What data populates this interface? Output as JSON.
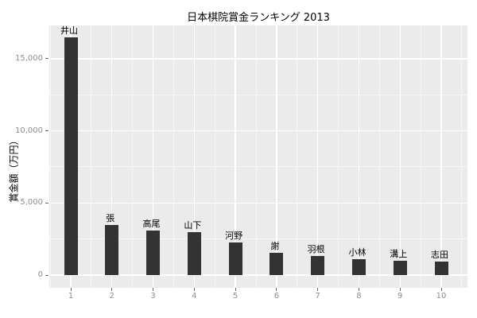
{
  "chart_data": {
    "type": "bar",
    "title": "日本棋院賞金ランキング 2013",
    "xlabel": "",
    "ylabel": "賞金額（万円）",
    "categories": [
      "1",
      "2",
      "3",
      "4",
      "5",
      "6",
      "7",
      "8",
      "9",
      "10"
    ],
    "bar_labels": [
      "井山",
      "張",
      "高尾",
      "山下",
      "河野",
      "謝",
      "羽根",
      "小林",
      "溝上",
      "志田"
    ],
    "values": [
      16461,
      3500,
      3100,
      3000,
      2250,
      1550,
      1300,
      1100,
      1000,
      950
    ],
    "yticks": [
      {
        "value": 0,
        "label": "0"
      },
      {
        "value": 5000,
        "label": "5,000"
      },
      {
        "value": 10000,
        "label": "10,000"
      },
      {
        "value": 15000,
        "label": "15,000"
      }
    ],
    "minor_yticks": [
      2500,
      7500,
      12500
    ],
    "ylim": [
      0,
      16461
    ],
    "grid": true,
    "legend_position": "none",
    "colors": {
      "bar": "#333333",
      "panel_background": "#EBEBEB",
      "grid_major": "#FFFFFF",
      "grid_minor": "#FFFFFF",
      "tick_text": "#8E8E8E",
      "tick_mark": "#666666",
      "title_text": "#000000",
      "bar_label_text": "#000000"
    }
  }
}
